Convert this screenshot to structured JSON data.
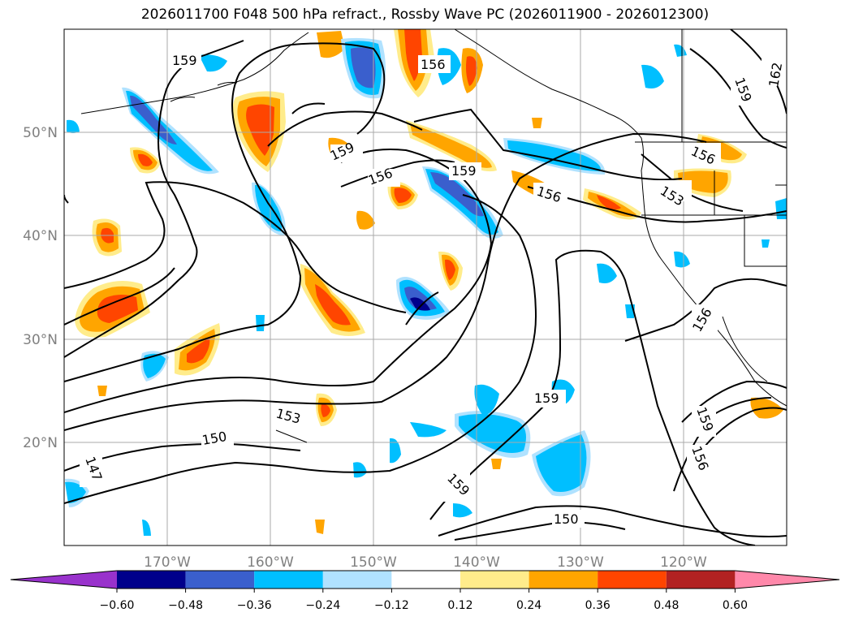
{
  "title": "2026011700 F048 500 hPa refract., Rossby Wave PC (2026011900 - 2026012300)",
  "map": {
    "lon_labels": [
      "170°W",
      "160°W",
      "150°W",
      "140°W",
      "130°W",
      "120°W"
    ],
    "lat_labels": [
      "50°N",
      "40°N",
      "30°N",
      "20°N"
    ],
    "lon_range": [
      -180,
      -110
    ],
    "lat_range": [
      10,
      60
    ],
    "gridlines": true
  },
  "contours": {
    "levels": [
      "147",
      "150",
      "153",
      "156",
      "159",
      "162"
    ],
    "line_color": "#000000"
  },
  "colorbar": {
    "ticks": [
      "−0.60",
      "−0.48",
      "−0.36",
      "−0.24",
      "−0.12",
      "0.12",
      "0.24",
      "0.36",
      "0.48",
      "0.60"
    ],
    "colors": [
      "#9932cc",
      "#00008b",
      "#3a5fcd",
      "#00bfff",
      "#b0e2ff",
      "#ffffff",
      "#ffec8b",
      "#ffa500",
      "#ff4500",
      "#b22222",
      "#ff88aa"
    ]
  }
}
